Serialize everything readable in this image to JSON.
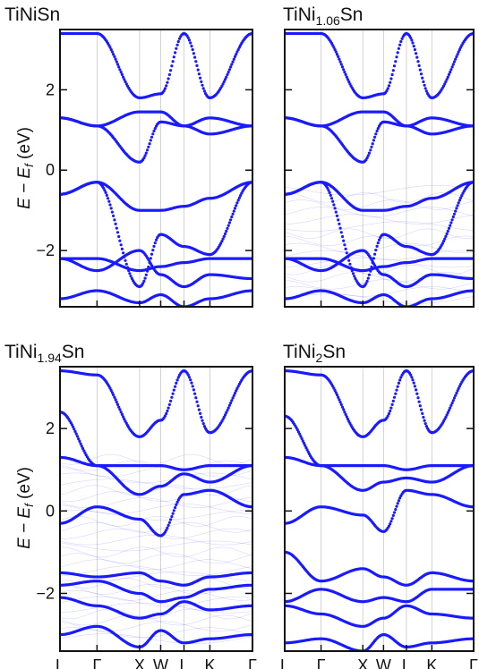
{
  "chart_data": [
    {
      "type": "line",
      "title": {
        "base": "TiNi",
        "sub": "",
        "tail": "Sn"
      },
      "ylabel": "E − E_f (eV)",
      "ylim": [
        -3.4,
        3.5
      ],
      "yticks": [
        2,
        0,
        -2
      ],
      "ytick_labels": [
        "2",
        "0",
        "−2"
      ],
      "kpath": [
        "L",
        "Γ",
        "X",
        "W",
        "L",
        "K",
        "Γ"
      ],
      "kpos": [
        0,
        1,
        2.15,
        2.72,
        3.35,
        4.05,
        5.2
      ],
      "band_color": "#1a1aff",
      "disorder": 0,
      "series": [
        {
          "values": [
            3.4,
            3.4,
            1.8,
            1.9,
            3.4,
            1.8,
            3.4
          ]
        },
        {
          "values": [
            1.3,
            1.1,
            1.45,
            1.45,
            1.1,
            1.3,
            1.1
          ]
        },
        {
          "values": [
            1.3,
            1.1,
            0.2,
            1.2,
            1.1,
            0.9,
            1.1
          ]
        },
        {
          "values": [
            -0.6,
            -0.3,
            -1.0,
            -1.0,
            -0.9,
            -0.7,
            -0.3
          ]
        },
        {
          "values": [
            -0.6,
            -0.3,
            -2.9,
            -1.6,
            -1.9,
            -2.1,
            -0.3
          ]
        },
        {
          "values": [
            -2.2,
            -2.2,
            -2.5,
            -2.4,
            -2.3,
            -2.2,
            -2.2
          ]
        },
        {
          "values": [
            -2.2,
            -2.5,
            -2.0,
            -2.6,
            -2.9,
            -2.6,
            -2.7
          ]
        },
        {
          "values": [
            -3.2,
            -3.0,
            -3.3,
            -3.1,
            -3.4,
            -3.2,
            -3.0
          ]
        }
      ]
    },
    {
      "type": "line",
      "title": {
        "base": "TiNi",
        "sub": "1.06",
        "tail": "Sn"
      },
      "ylabel": "",
      "ylim": [
        -3.4,
        3.5
      ],
      "yticks": [
        2,
        0,
        -2
      ],
      "ytick_labels": [
        "",
        "",
        ""
      ],
      "kpath": [
        "L",
        "Γ",
        "X",
        "W",
        "L",
        "K",
        "Γ"
      ],
      "kpos": [
        0,
        1,
        2.15,
        2.72,
        3.35,
        4.05,
        5.2
      ],
      "band_color": "#1a1aff",
      "disorder": 1,
      "series": [
        {
          "values": [
            3.4,
            3.4,
            1.8,
            1.9,
            3.4,
            1.8,
            3.4
          ]
        },
        {
          "values": [
            1.3,
            1.1,
            1.45,
            1.45,
            1.1,
            1.3,
            1.1
          ]
        },
        {
          "values": [
            1.3,
            1.1,
            0.2,
            1.2,
            1.1,
            0.9,
            1.1
          ]
        },
        {
          "values": [
            -0.6,
            -0.3,
            -1.0,
            -1.0,
            -0.9,
            -0.7,
            -0.3
          ]
        },
        {
          "values": [
            -0.6,
            -0.3,
            -2.9,
            -1.6,
            -1.9,
            -2.1,
            -0.3
          ]
        },
        {
          "values": [
            -2.2,
            -2.2,
            -2.5,
            -2.4,
            -2.3,
            -2.2,
            -2.2
          ]
        },
        {
          "values": [
            -2.2,
            -2.5,
            -2.0,
            -2.6,
            -2.9,
            -2.6,
            -2.7
          ]
        },
        {
          "values": [
            -3.2,
            -3.0,
            -3.3,
            -3.1,
            -3.4,
            -3.2,
            -3.0
          ]
        }
      ]
    },
    {
      "type": "line",
      "title": {
        "base": "TiNi",
        "sub": "1.94",
        "tail": "Sn"
      },
      "ylabel": "E − E_f (eV)",
      "ylim": [
        -3.4,
        3.5
      ],
      "yticks": [
        2,
        0,
        -2
      ],
      "ytick_labels": [
        "2",
        "0",
        "−2"
      ],
      "kpath": [
        "L",
        "Γ",
        "X",
        "W",
        "L",
        "K",
        "Γ"
      ],
      "kpos": [
        0,
        1,
        2.15,
        2.72,
        3.35,
        4.05,
        5.2
      ],
      "band_color": "#1a1aff",
      "disorder": 2,
      "series": [
        {
          "values": [
            3.4,
            3.3,
            1.8,
            2.2,
            3.4,
            1.9,
            3.4
          ]
        },
        {
          "values": [
            2.4,
            1.1,
            1.1,
            1.1,
            1.0,
            1.1,
            1.1
          ]
        },
        {
          "values": [
            1.3,
            1.1,
            0.4,
            0.6,
            0.9,
            0.7,
            1.1
          ]
        },
        {
          "values": [
            -0.3,
            0.1,
            -0.2,
            -0.6,
            0.4,
            0.5,
            0.1
          ]
        },
        {
          "values": [
            -1.5,
            -1.6,
            -1.5,
            -1.7,
            -1.8,
            -1.6,
            -1.5
          ]
        },
        {
          "values": [
            -1.8,
            -1.7,
            -2.0,
            -2.2,
            -2.1,
            -1.9,
            -1.8
          ]
        },
        {
          "values": [
            -2.1,
            -2.3,
            -2.6,
            -2.5,
            -2.2,
            -2.4,
            -2.3
          ]
        },
        {
          "values": [
            -3.0,
            -2.8,
            -3.3,
            -2.9,
            -3.2,
            -3.1,
            -3.0
          ]
        }
      ]
    },
    {
      "type": "line",
      "title": {
        "base": "TiNi",
        "sub": "2",
        "tail": "Sn"
      },
      "ylabel": "",
      "ylim": [
        -3.4,
        3.5
      ],
      "yticks": [
        2,
        0,
        -2
      ],
      "ytick_labels": [
        "",
        "",
        ""
      ],
      "kpath": [
        "L",
        "Γ",
        "X",
        "W",
        "L",
        "K",
        "Γ"
      ],
      "kpos": [
        0,
        1,
        2.15,
        2.72,
        3.35,
        4.05,
        5.2
      ],
      "band_color": "#1a1aff",
      "disorder": 0,
      "series": [
        {
          "values": [
            3.4,
            3.3,
            1.8,
            2.2,
            3.4,
            1.9,
            3.4
          ]
        },
        {
          "values": [
            2.3,
            1.1,
            1.1,
            1.1,
            1.0,
            1.1,
            1.1
          ]
        },
        {
          "values": [
            1.3,
            1.1,
            0.5,
            0.7,
            0.8,
            0.7,
            1.1
          ]
        },
        {
          "values": [
            -0.3,
            0.1,
            -0.1,
            -0.5,
            0.5,
            0.4,
            0.1
          ]
        },
        {
          "values": [
            -1.0,
            -1.7,
            -1.4,
            -1.6,
            -1.8,
            -1.5,
            -1.7
          ]
        },
        {
          "values": [
            -2.2,
            -1.9,
            -2.2,
            -2.1,
            -2.2,
            -1.9,
            -1.9
          ]
        },
        {
          "values": [
            -2.3,
            -2.5,
            -2.8,
            -2.6,
            -2.3,
            -2.5,
            -2.6
          ]
        },
        {
          "values": [
            -3.2,
            -3.1,
            -3.4,
            -3.0,
            -3.3,
            -3.2,
            -3.1
          ]
        }
      ]
    }
  ]
}
